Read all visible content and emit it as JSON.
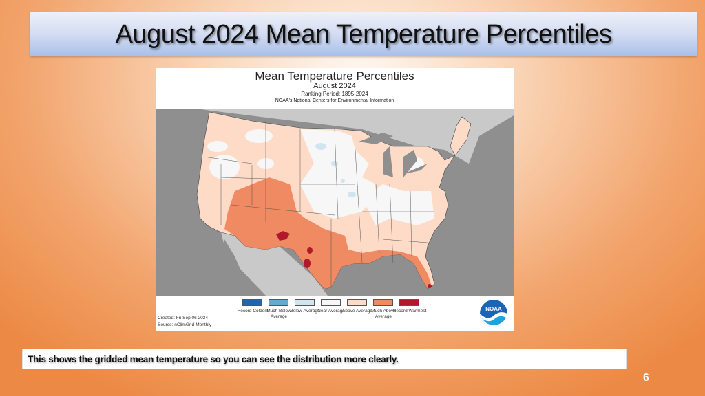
{
  "slide": {
    "title": "August 2024 Mean Temperature Percentiles",
    "caption": "This shows the gridded mean temperature so you can see the distribution more clearly.",
    "page_number": "6"
  },
  "figure": {
    "title": "Mean Temperature Percentiles",
    "subtitle": "August 2024",
    "ranking_period": "Ranking Period: 1895-2024",
    "source_org": "NOAA's National Centers for Environmental Information",
    "created": "Created: Fri Sep 06 2024",
    "source": "Source: nClimGrid-Monthly",
    "logo_text": "NOAA",
    "legend": [
      {
        "label": "Record Coldest",
        "color": "#2166ac"
      },
      {
        "label": "Much Below Average",
        "color": "#67a9cf"
      },
      {
        "label": "Below Average",
        "color": "#d1e5f0"
      },
      {
        "label": "Near Average",
        "color": "#f7f7f7"
      },
      {
        "label": "Above Average",
        "color": "#fddbc7"
      },
      {
        "label": "Much Above Average",
        "color": "#ef8a62"
      },
      {
        "label": "Record Warmest",
        "color": "#b2182b"
      }
    ]
  }
}
